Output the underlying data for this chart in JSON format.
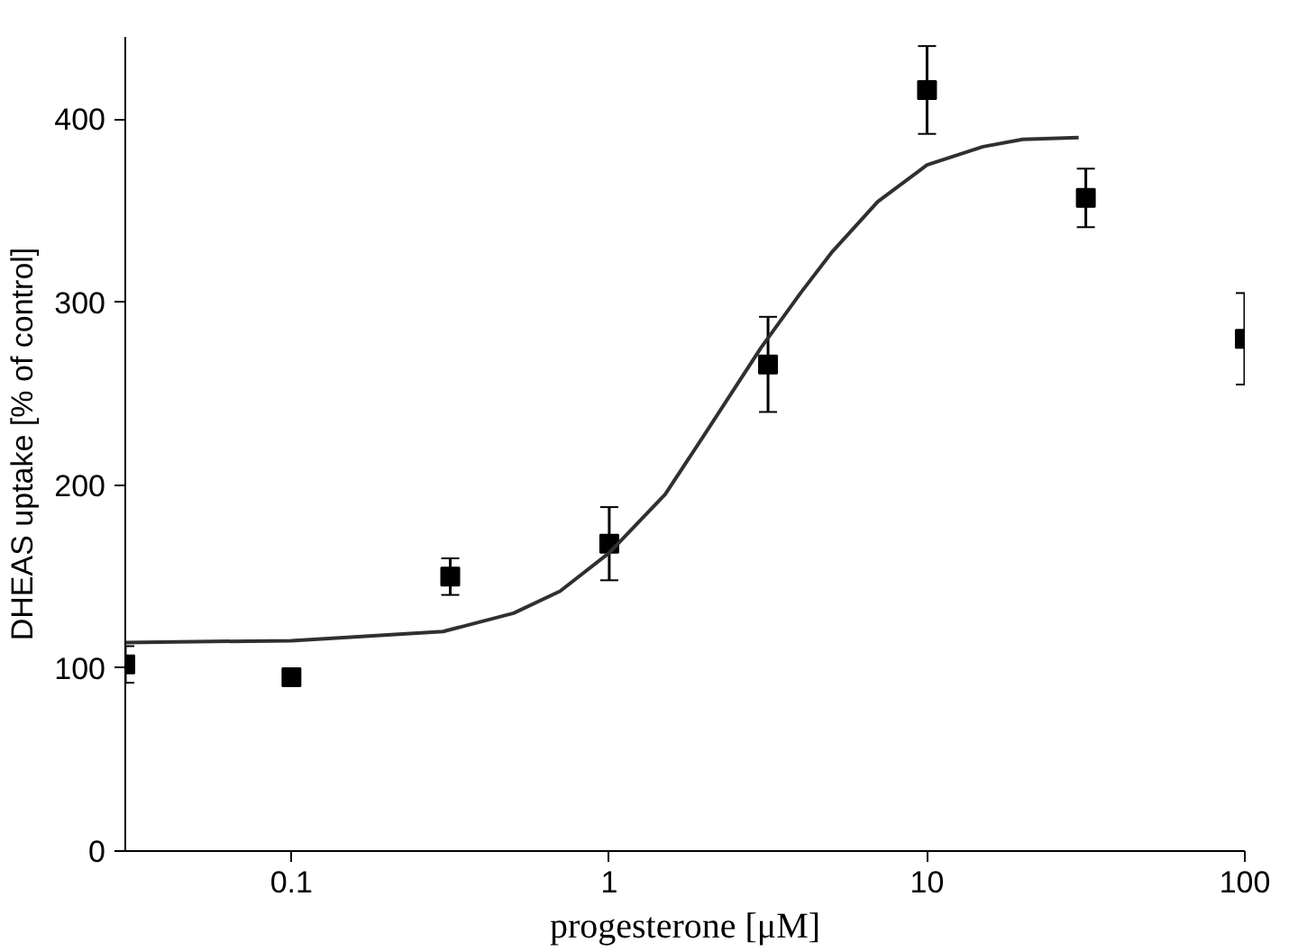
{
  "chart_data": {
    "type": "scatter",
    "xlabel": "progesterone [μM]",
    "ylabel": "DHEAS uptake [% of control]",
    "log": "x",
    "xlim": [
      0.03,
      100
    ],
    "xticks": [
      0.1,
      1,
      10,
      100
    ],
    "ylim": [
      0,
      445
    ],
    "yticks": [
      0,
      100,
      200,
      300,
      400
    ],
    "grid": false,
    "series": [
      {
        "marker": "square",
        "color": "#000000",
        "x": [
          0.03,
          0.1,
          0.316,
          1,
          3.16,
          10,
          31.6,
          100
        ],
        "values": [
          102,
          95,
          150,
          168,
          266,
          416,
          357,
          280
        ],
        "errors": [
          10,
          null,
          10,
          20,
          26,
          24,
          16,
          25
        ]
      },
      {
        "type": "line",
        "color": "#303030",
        "line_style": "solid",
        "x": [
          0.03,
          0.1,
          0.3,
          0.5,
          0.7,
          1,
          1.5,
          2,
          3,
          4,
          5,
          7,
          10,
          15,
          20,
          30
        ],
        "values": [
          114,
          115,
          120,
          130,
          142,
          163,
          195,
          228,
          275,
          305,
          327,
          355,
          375,
          385,
          389,
          390
        ]
      }
    ]
  }
}
